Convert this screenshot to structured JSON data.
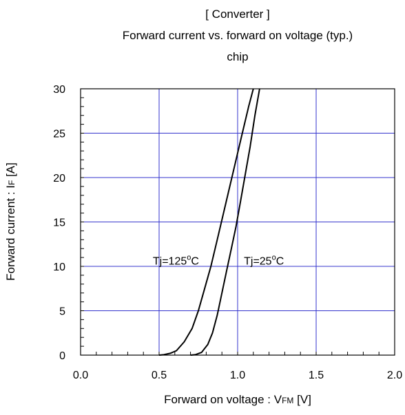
{
  "chart_data": {
    "type": "line",
    "title": "[ Converter ]",
    "subtitle": "Forward current  vs.  forward on voltage  (typ.)",
    "subtitle2": "chip",
    "xlabel": {
      "main": "Forward on voltage : V",
      "sub": "FM",
      "unit": " [V]"
    },
    "ylabel": {
      "main": "Forward current : I",
      "sub": "F",
      "unit": " [A]"
    },
    "xlim": [
      0.0,
      2.0
    ],
    "ylim": [
      0,
      30
    ],
    "xticks": [
      "0.0",
      "0.5",
      "1.0",
      "1.5",
      "2.0"
    ],
    "yticks": [
      "0",
      "5",
      "10",
      "15",
      "20",
      "25",
      "30"
    ],
    "grid": true,
    "series": [
      {
        "name": "Tj=125°C",
        "x": [
          0.5,
          0.53,
          0.57,
          0.61,
          0.66,
          0.71,
          0.75,
          0.79,
          0.83,
          0.87,
          0.91,
          0.95,
          0.99,
          1.03,
          1.07,
          1.1
        ],
        "y": [
          0,
          0.05,
          0.2,
          0.5,
          1.5,
          3.0,
          5.0,
          7.5,
          10.0,
          13.0,
          16.0,
          19.0,
          22.0,
          25.0,
          28.0,
          30.0
        ]
      },
      {
        "name": "Tj=25°C",
        "x": [
          0.7,
          0.73,
          0.77,
          0.81,
          0.84,
          0.87,
          0.9,
          0.93,
          0.96,
          0.99,
          1.02,
          1.05,
          1.08,
          1.11,
          1.14
        ],
        "y": [
          0,
          0.05,
          0.3,
          1.2,
          2.5,
          4.5,
          7.0,
          9.5,
          12.0,
          14.5,
          17.5,
          20.5,
          23.5,
          27.0,
          30.0
        ]
      }
    ],
    "annotations": [
      {
        "prefix": "Tj=125",
        "sup": "o",
        "suffix": "C",
        "x": 0.46,
        "y": 10.2
      },
      {
        "prefix": "Tj=25",
        "sup": "o",
        "suffix": "C",
        "x": 1.04,
        "y": 10.2
      }
    ],
    "colors": {
      "grid": "#3333cc",
      "line": "#000000",
      "frame": "#000000"
    }
  }
}
